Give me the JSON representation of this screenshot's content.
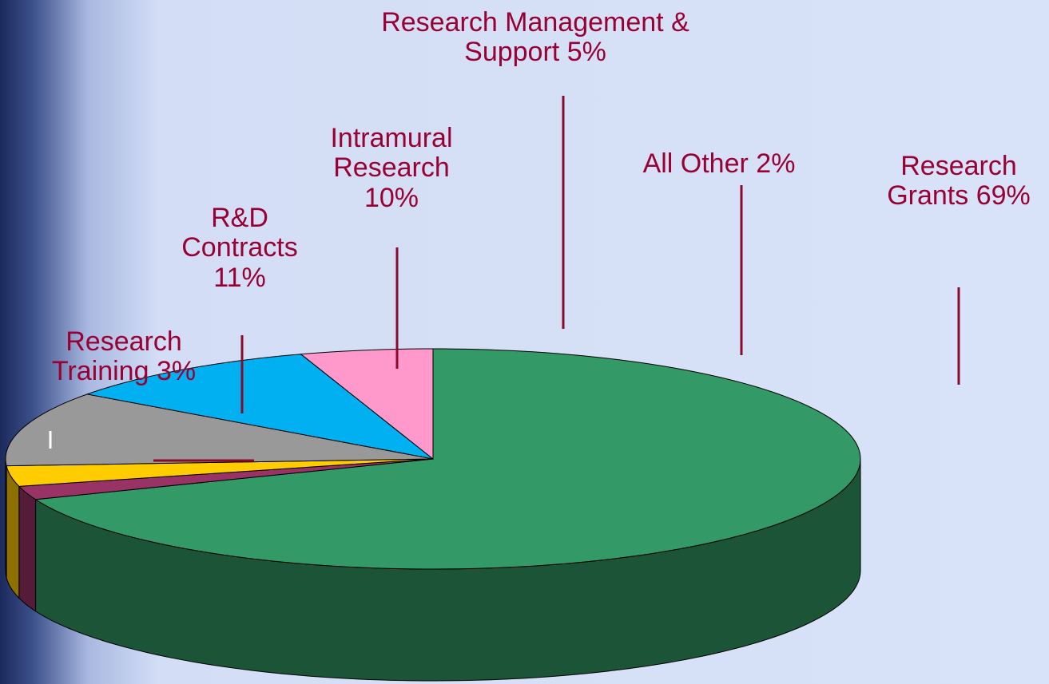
{
  "chart_data": {
    "type": "pie",
    "categories": [
      "Research Grants",
      "All Other",
      "Research Training",
      "R&D Contracts",
      "Intramural Research",
      "Research Management & Support"
    ],
    "values": [
      69,
      2,
      3,
      11,
      10,
      5
    ],
    "value_labels": [
      "69%",
      "2%",
      "3%",
      "11%",
      "10%",
      "5%"
    ],
    "colors": [
      "#339966",
      "#993366",
      "#ffcc00",
      "#999999",
      "#00b0f0",
      "#ff99cc"
    ]
  }
}
